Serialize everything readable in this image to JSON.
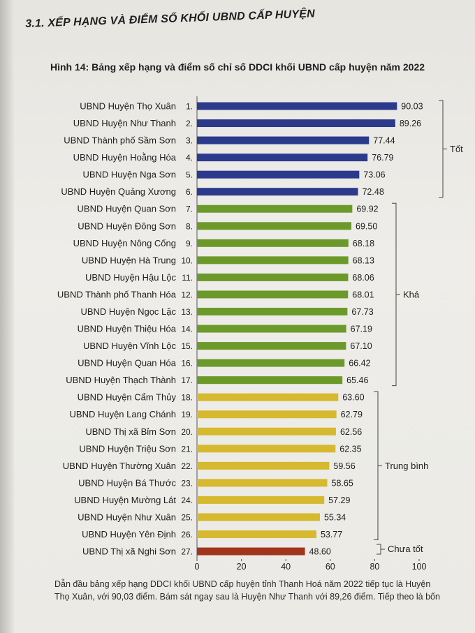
{
  "section_heading": "3.1. XẾP HẠNG VÀ ĐIỂM SỐ KHỐI UBND CẤP HUYỆN",
  "figure_title": "Hình 14: Bảng xếp hạng và điểm số chỉ số DDCI khối UBND cấp huyện năm 2022",
  "body_text_line1": "Dẫn đầu bảng xếp hạng DDCI khối UBND cấp huyện tỉnh Thanh Hoá năm 2022 tiếp tục là Huyện",
  "body_text_line2": "Thọ Xuân, với 90,03 điểm. Bám sát ngay sau là Huyện Như Thanh với 89,26 điểm. Tiếp theo là bốn",
  "chart_data": {
    "type": "bar",
    "orientation": "horizontal",
    "xlim": [
      0,
      100
    ],
    "xticks": [
      0,
      20,
      40,
      60,
      80,
      100
    ],
    "grid": false,
    "categories": [
      "UBND Huyện Thọ Xuân",
      "UBND Huyện Như Thanh",
      "UBND Thành phố Sầm Sơn",
      "UBND Huyện Hoằng Hóa",
      "UBND Huyện Nga Sơn",
      "UBND Huyện Quảng Xương",
      "UBND Huyện Quan Sơn",
      "UBND Huyện Đông Sơn",
      "UBND Huyện Nông Cống",
      "UBND Huyện Hà Trung",
      "UBND Huyện Hậu Lộc",
      "UBND Thành phố Thanh Hóa",
      "UBND Huyện Ngọc Lặc",
      "UBND Huyện Thiệu Hóa",
      "UBND Huyện Vĩnh Lộc",
      "UBND Huyện Quan Hóa",
      "UBND Huyện Thạch Thành",
      "UBND Huyện Cẩm Thủy",
      "UBND Huyện Lang Chánh",
      "UBND Thị xã Bỉm Sơn",
      "UBND Huyện Triệu Sơn",
      "UBND Huyện Thường Xuân",
      "UBND Huyện Bá Thước",
      "UBND Huyện Mường Lát",
      "UBND Huyện Như Xuân",
      "UBND Huyện Yên Định",
      "UBND Thị xã Nghi Sơn"
    ],
    "ranks": [
      "1.",
      "2.",
      "3.",
      "4.",
      "5.",
      "6.",
      "7.",
      "8.",
      "9.",
      "10.",
      "11.",
      "12.",
      "13.",
      "14.",
      "15.",
      "16.",
      "17.",
      "18.",
      "19.",
      "20.",
      "21.",
      "22.",
      "23.",
      "24.",
      "25.",
      "26.",
      "27."
    ],
    "values": [
      90.03,
      89.26,
      77.44,
      76.79,
      73.06,
      72.48,
      69.92,
      69.5,
      68.18,
      68.13,
      68.06,
      68.01,
      67.73,
      67.19,
      67.1,
      66.42,
      65.46,
      63.6,
      62.79,
      62.56,
      62.35,
      59.56,
      58.65,
      57.29,
      55.34,
      53.77,
      48.6
    ],
    "value_labels": [
      "90.03",
      "89.26",
      "77.44",
      "76.79",
      "73.06",
      "72.48",
      "69.92",
      "69.50",
      "68.18",
      "68.13",
      "68.06",
      "68.01",
      "67.73",
      "67.19",
      "67.10",
      "66.42",
      "65.46",
      "63.60",
      "62.79",
      "62.56",
      "62.35",
      "59.56",
      "58.65",
      "57.29",
      "55.34",
      "53.77",
      "48.60"
    ],
    "groups": [
      {
        "name": "Tốt",
        "start": 0,
        "end": 5,
        "color": "#2c3a8c"
      },
      {
        "name": "Khá",
        "start": 6,
        "end": 16,
        "color": "#6c9a2a"
      },
      {
        "name": "Trung bình",
        "start": 17,
        "end": 25,
        "color": "#d6b92e"
      },
      {
        "name": "Chưa tốt",
        "start": 26,
        "end": 26,
        "color": "#a3341c"
      }
    ]
  }
}
